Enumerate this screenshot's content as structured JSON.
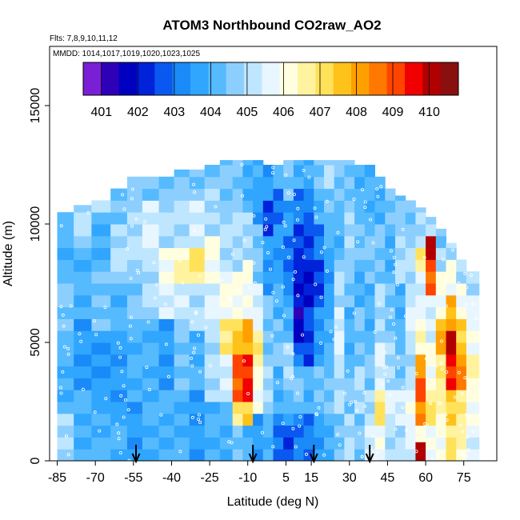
{
  "chart_data": {
    "type": "heatmap",
    "title": "ATOM3 Northbound CO2raw_AO2",
    "flights_note": "Flts: 7,8,9,10,11,12",
    "dates_note": "MMDD: 1014,1017,1019,1020,1023,1025",
    "xlabel": "Latitude (deg N)",
    "ylabel": "Altitude (m)",
    "xlim": [
      -88,
      88
    ],
    "ylim": [
      0,
      17500
    ],
    "x_ticks": [
      -85,
      -70,
      -55,
      -40,
      -25,
      -10,
      5,
      15,
      30,
      45,
      60,
      75
    ],
    "y_ticks": [
      0,
      5000,
      10000,
      15000
    ],
    "colorbar": {
      "ticks": [
        401,
        402,
        403,
        404,
        405,
        406,
        407,
        408,
        409,
        410
      ],
      "range": [
        400.5,
        410.8
      ],
      "colors": [
        "#7a1fd6",
        "#2e00b8",
        "#0000c0",
        "#0022d8",
        "#0a58f0",
        "#1a8af8",
        "#30a6ff",
        "#56baff",
        "#8ccfff",
        "#bfe6ff",
        "#e8f6ff",
        "#ffffe0",
        "#fff3a0",
        "#ffe25a",
        "#ffc21a",
        "#ffa000",
        "#ff7800",
        "#ff4400",
        "#f00000",
        "#b00000",
        "#8a1010"
      ]
    },
    "profile_markers_lat": [
      -54,
      -8,
      16,
      38
    ],
    "profiles": [
      {
        "lat": -82,
        "top": 10500,
        "cells": [
          [
            0,
            405
          ],
          [
            2000,
            404
          ],
          [
            5000,
            404.5
          ],
          [
            8000,
            404
          ],
          [
            10000,
            404.5
          ]
        ]
      },
      {
        "lat": -75,
        "top": 10800,
        "cells": [
          [
            0,
            404
          ],
          [
            3000,
            403.5
          ],
          [
            6000,
            404
          ],
          [
            9000,
            405
          ],
          [
            10500,
            405
          ]
        ]
      },
      {
        "lat": -68,
        "top": 11000,
        "cells": [
          [
            0,
            404
          ],
          [
            2500,
            403.5
          ],
          [
            5500,
            404.5
          ],
          [
            8000,
            404
          ],
          [
            10500,
            405
          ]
        ]
      },
      {
        "lat": -60,
        "top": 11500,
        "cells": [
          [
            0,
            404
          ],
          [
            2000,
            403.5
          ],
          [
            5000,
            404
          ],
          [
            7500,
            405
          ],
          [
            10000,
            404.5
          ],
          [
            11000,
            404
          ]
        ]
      },
      {
        "lat": -55,
        "top": 12000,
        "cells": [
          [
            0,
            403.5
          ],
          [
            2500,
            404
          ],
          [
            5500,
            404.5
          ],
          [
            8000,
            405
          ],
          [
            11000,
            404.5
          ]
        ]
      },
      {
        "lat": -48,
        "top": 12000,
        "cells": [
          [
            0,
            404
          ],
          [
            3000,
            404
          ],
          [
            6000,
            405
          ],
          [
            8500,
            405.5
          ],
          [
            11000,
            404.5
          ]
        ]
      },
      {
        "lat": -42,
        "top": 12000,
        "cells": [
          [
            0,
            404
          ],
          [
            3000,
            403.5
          ],
          [
            6000,
            405.5
          ],
          [
            7500,
            406
          ],
          [
            9000,
            405
          ],
          [
            11000,
            404.5
          ]
        ]
      },
      {
        "lat": -36,
        "top": 12300,
        "cells": [
          [
            0,
            404
          ],
          [
            3000,
            404.5
          ],
          [
            6000,
            405.5
          ],
          [
            7500,
            406.5
          ],
          [
            9000,
            405
          ],
          [
            11500,
            404.5
          ]
        ]
      },
      {
        "lat": -30,
        "top": 12300,
        "cells": [
          [
            0,
            403.5
          ],
          [
            3000,
            404
          ],
          [
            5500,
            405
          ],
          [
            7500,
            407
          ],
          [
            9000,
            405.5
          ],
          [
            11000,
            404.5
          ]
        ]
      },
      {
        "lat": -24,
        "top": 12500,
        "cells": [
          [
            0,
            404
          ],
          [
            2500,
            405
          ],
          [
            5500,
            405.5
          ],
          [
            7500,
            406
          ],
          [
            9500,
            405
          ],
          [
            11500,
            404.5
          ]
        ]
      },
      {
        "lat": -18,
        "top": 12700,
        "cells": [
          [
            0,
            404
          ],
          [
            2500,
            405.5
          ],
          [
            4500,
            407
          ],
          [
            6000,
            406
          ],
          [
            8000,
            405
          ],
          [
            10500,
            404.5
          ]
        ]
      },
      {
        "lat": -14,
        "top": 12700,
        "cells": [
          [
            0,
            404.5
          ],
          [
            1500,
            407
          ],
          [
            2500,
            409
          ],
          [
            4500,
            407.5
          ],
          [
            6000,
            406
          ],
          [
            8000,
            405
          ],
          [
            11000,
            404.5
          ]
        ]
      },
      {
        "lat": -10,
        "top": 12700,
        "cells": [
          [
            0,
            404
          ],
          [
            1500,
            407.5
          ],
          [
            2500,
            409.5
          ],
          [
            4500,
            408
          ],
          [
            6000,
            406
          ],
          [
            8500,
            405
          ],
          [
            10500,
            404
          ]
        ]
      },
      {
        "lat": -6,
        "top": 12700,
        "cells": [
          [
            0,
            403.5
          ],
          [
            2000,
            406
          ],
          [
            4000,
            407
          ],
          [
            5500,
            405.5
          ],
          [
            7500,
            404.5
          ],
          [
            10000,
            403.5
          ],
          [
            11500,
            404
          ]
        ]
      },
      {
        "lat": -2,
        "top": 12500,
        "cells": [
          [
            0,
            404
          ],
          [
            2000,
            405
          ],
          [
            4000,
            404.5
          ],
          [
            7000,
            403.5
          ],
          [
            9500,
            402.5
          ],
          [
            11000,
            403.5
          ]
        ]
      },
      {
        "lat": 2,
        "top": 12500,
        "cells": [
          [
            0,
            403
          ],
          [
            2000,
            404
          ],
          [
            4000,
            404.5
          ],
          [
            6000,
            404
          ],
          [
            8000,
            403.5
          ],
          [
            10000,
            403
          ],
          [
            11500,
            404
          ]
        ]
      },
      {
        "lat": 6,
        "top": 12700,
        "cells": [
          [
            0,
            402.5
          ],
          [
            1500,
            404
          ],
          [
            3000,
            405
          ],
          [
            5000,
            404
          ],
          [
            7000,
            403
          ],
          [
            9500,
            403.5
          ],
          [
            11000,
            404.5
          ]
        ]
      },
      {
        "lat": 10,
        "top": 12700,
        "cells": [
          [
            0,
            403
          ],
          [
            2000,
            404.5
          ],
          [
            4000,
            403
          ],
          [
            5000,
            401.5
          ],
          [
            6500,
            402
          ],
          [
            8500,
            402.5
          ],
          [
            10000,
            403
          ],
          [
            11500,
            404
          ]
        ]
      },
      {
        "lat": 14,
        "top": 12700,
        "cells": [
          [
            0,
            403
          ],
          [
            2000,
            404
          ],
          [
            4000,
            402.5
          ],
          [
            6500,
            402
          ],
          [
            8500,
            402.5
          ],
          [
            10000,
            403
          ],
          [
            11500,
            404
          ]
        ]
      },
      {
        "lat": 18,
        "top": 12700,
        "cells": [
          [
            0,
            403.5
          ],
          [
            2000,
            404.5
          ],
          [
            4000,
            403.5
          ],
          [
            6500,
            402.5
          ],
          [
            8500,
            403
          ],
          [
            10000,
            404
          ],
          [
            11500,
            404.5
          ]
        ]
      },
      {
        "lat": 22,
        "top": 12700,
        "cells": [
          [
            0,
            404
          ],
          [
            2000,
            404.5
          ],
          [
            4000,
            404
          ],
          [
            6500,
            403.5
          ],
          [
            8500,
            404
          ],
          [
            10000,
            404.5
          ],
          [
            11500,
            405
          ]
        ]
      },
      {
        "lat": 26,
        "top": 12700,
        "cells": [
          [
            0,
            404.5
          ],
          [
            2000,
            405
          ],
          [
            4000,
            405.5
          ],
          [
            6500,
            405
          ],
          [
            8500,
            404
          ],
          [
            10500,
            404.5
          ]
        ]
      },
      {
        "lat": 30,
        "top": 12700,
        "cells": [
          [
            0,
            405
          ],
          [
            2000,
            404.5
          ],
          [
            4000,
            404
          ],
          [
            6500,
            404.5
          ],
          [
            8500,
            405
          ],
          [
            10500,
            404.5
          ]
        ]
      },
      {
        "lat": 34,
        "top": 12500,
        "cells": [
          [
            0,
            404.5
          ],
          [
            2000,
            405
          ],
          [
            4000,
            404.5
          ],
          [
            6500,
            404
          ],
          [
            8500,
            404.5
          ],
          [
            10500,
            404
          ]
        ]
      },
      {
        "lat": 38,
        "top": 12500,
        "cells": [
          [
            0,
            405.5
          ],
          [
            1500,
            405
          ],
          [
            3000,
            404.5
          ],
          [
            5000,
            404
          ],
          [
            7500,
            404.5
          ],
          [
            10000,
            404
          ]
        ]
      },
      {
        "lat": 42,
        "top": 12000,
        "cells": [
          [
            0,
            406
          ],
          [
            1500,
            407
          ],
          [
            3000,
            405.5
          ],
          [
            5000,
            405
          ],
          [
            7500,
            404.5
          ],
          [
            10000,
            404
          ]
        ]
      },
      {
        "lat": 46,
        "top": 11500,
        "cells": [
          [
            0,
            405
          ],
          [
            1500,
            405.5
          ],
          [
            3000,
            405
          ],
          [
            5000,
            404.5
          ],
          [
            7500,
            404
          ],
          [
            10000,
            404.5
          ]
        ]
      },
      {
        "lat": 50,
        "top": 11200,
        "cells": [
          [
            0,
            405
          ],
          [
            1500,
            405.5
          ],
          [
            3000,
            404.5
          ],
          [
            5000,
            404
          ],
          [
            7500,
            405
          ],
          [
            10000,
            404.5
          ]
        ]
      },
      {
        "lat": 54,
        "top": 11000,
        "cells": [
          [
            0,
            405.5
          ],
          [
            1500,
            406
          ],
          [
            3000,
            405
          ],
          [
            5000,
            405.5
          ],
          [
            7000,
            405
          ],
          [
            9500,
            404.5
          ]
        ]
      },
      {
        "lat": 58,
        "top": 10700,
        "cells": [
          [
            0,
            410
          ],
          [
            800,
            406
          ],
          [
            1500,
            408.5
          ],
          [
            2500,
            409
          ],
          [
            3500,
            408
          ],
          [
            4500,
            406.5
          ],
          [
            6000,
            405.5
          ],
          [
            8000,
            407
          ],
          [
            9000,
            405
          ]
        ]
      },
      {
        "lat": 62,
        "top": 10300,
        "cells": [
          [
            0,
            406
          ],
          [
            1500,
            407
          ],
          [
            3000,
            406
          ],
          [
            5000,
            405.5
          ],
          [
            7000,
            409
          ],
          [
            8500,
            410
          ],
          [
            9500,
            405
          ]
        ]
      },
      {
        "lat": 66,
        "top": 9800,
        "cells": [
          [
            0,
            406
          ],
          [
            1500,
            406.5
          ],
          [
            3000,
            407
          ],
          [
            4500,
            408
          ],
          [
            6000,
            406
          ],
          [
            8000,
            405
          ],
          [
            9000,
            404.5
          ]
        ]
      },
      {
        "lat": 70,
        "top": 9200,
        "cells": [
          [
            0,
            407
          ],
          [
            1500,
            407.5
          ],
          [
            3000,
            409.5
          ],
          [
            4500,
            410
          ],
          [
            5500,
            408
          ],
          [
            7000,
            406
          ],
          [
            8500,
            405
          ]
        ]
      },
      {
        "lat": 74,
        "top": 8500,
        "cells": [
          [
            0,
            406.5
          ],
          [
            1500,
            407
          ],
          [
            3000,
            408.5
          ],
          [
            4500,
            407.5
          ],
          [
            6000,
            406
          ],
          [
            7500,
            405
          ]
        ]
      },
      {
        "lat": 78,
        "top": 8000,
        "cells": [
          [
            0,
            405.5
          ],
          [
            1500,
            406
          ],
          [
            3000,
            406.5
          ],
          [
            4500,
            406
          ],
          [
            6000,
            405.5
          ],
          [
            7000,
            405
          ]
        ]
      }
    ]
  }
}
